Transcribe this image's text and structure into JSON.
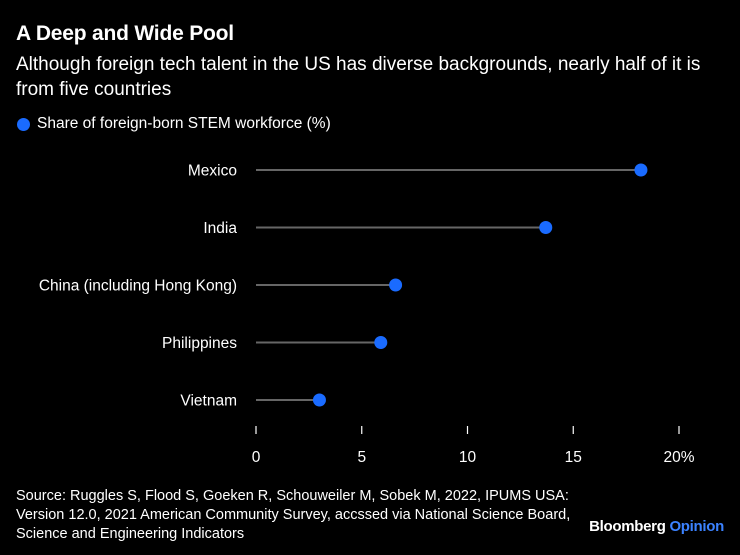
{
  "header": {
    "title": "A Deep and Wide Pool",
    "subtitle": "Although foreign tech talent in the US has diverse backgrounds, nearly half of it is from five countries"
  },
  "colors": {
    "background": "#000000",
    "dot": "#1a6bff",
    "stem": "#666666",
    "brand_accent": "#3b82ff"
  },
  "chart_data": {
    "type": "lollipop",
    "title": "A Deep and Wide Pool",
    "legend": [
      "Share of foreign-born STEM workforce (%)"
    ],
    "categories": [
      "Mexico",
      "India",
      "China (including Hong Kong)",
      "Philippines",
      "Vietnam"
    ],
    "values": [
      18.2,
      13.7,
      6.6,
      5.9,
      3.0
    ],
    "xlim": [
      0,
      20
    ],
    "xticks": [
      0,
      5,
      10,
      15,
      20
    ],
    "xtick_labels": [
      "0",
      "5",
      "10",
      "15",
      "20%"
    ],
    "xlabel": "",
    "ylabel": ""
  },
  "footer": {
    "source": "Source: Ruggles S, Flood S, Goeken R, Schouweiler M, Sobek M, 2022, IPUMS USA: Version 12.0, 2021 American Community Survey, accssed via National Science Board, Science and Engineering Indicators",
    "brand_name": "Bloomberg",
    "brand_suffix": "Opinion"
  }
}
